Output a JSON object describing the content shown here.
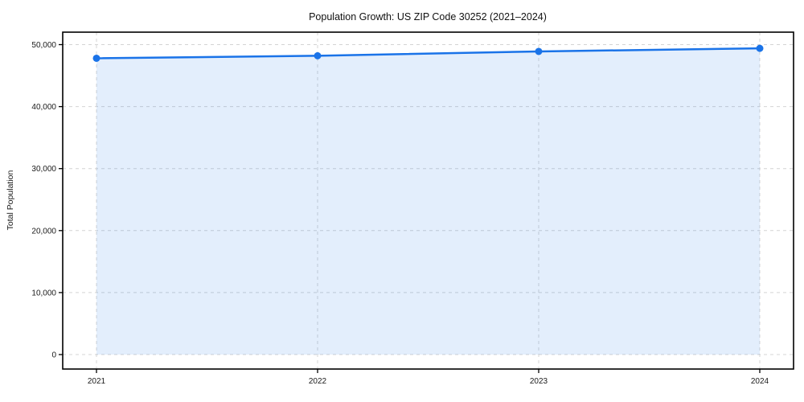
{
  "page": {
    "background": "#ffffff"
  },
  "chart_data": {
    "type": "area",
    "title": "Population Growth: US ZIP Code 30252 (2021–2024)",
    "xlabel": "",
    "ylabel": "Total Population",
    "x": [
      2021,
      2022,
      2023,
      2024
    ],
    "categories": [
      "2021",
      "2022",
      "2023",
      "2024"
    ],
    "series": [
      {
        "name": "Total Population",
        "values": [
          47800,
          48200,
          48900,
          49400
        ]
      }
    ],
    "ylim": [
      0,
      50000
    ],
    "yticks": [
      0,
      10000,
      20000,
      30000,
      40000,
      50000
    ],
    "ytick_labels": [
      "0",
      "10,000",
      "20,000",
      "30,000",
      "40,000",
      "50,000"
    ],
    "xtick_labels": [
      "2021",
      "2022",
      "2023",
      "2024"
    ],
    "grid": true,
    "grid_style": "dashed",
    "legend": false,
    "line_color": "#1a73e8",
    "marker": "circle",
    "fill_color": "rgba(26,115,232,0.12)",
    "grid_color": "#d4d4d4",
    "axis_color": "#000000",
    "background": "#ffffff"
  }
}
